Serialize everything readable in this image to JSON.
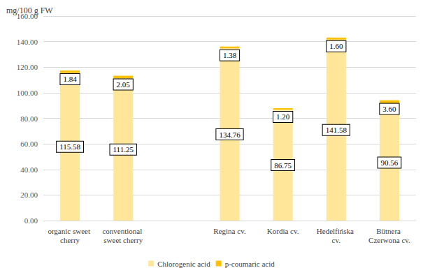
{
  "chart_data": {
    "type": "bar",
    "y_label": "mg/100 g FW",
    "categories": [
      "organic sweet cherry",
      "conventional sweet cherry",
      null,
      "Regina cv.",
      "Kordia cv.",
      "Hedelfińska cv.",
      "Bütnera Czerwona cv."
    ],
    "series": [
      {
        "name": "Chlorogenic acid",
        "color": "#FFE699",
        "values": [
          115.58,
          111.25,
          null,
          134.76,
          86.75,
          141.58,
          90.56
        ],
        "value_labels": [
          "115.58",
          "111.25",
          null,
          "134.76",
          "86.75",
          "141.58",
          "90.56"
        ]
      },
      {
        "name": "p-coumaric acid",
        "color": "#FFC000",
        "values": [
          1.84,
          2.05,
          null,
          1.38,
          1.2,
          1.6,
          3.6
        ],
        "value_labels": [
          "1.84",
          "2.05",
          null,
          "1.38",
          "1.20",
          "1.60",
          "3.60"
        ]
      }
    ],
    "ylim": [
      0,
      160
    ],
    "yticks": [
      {
        "value": 0,
        "label": "0.00"
      },
      {
        "value": 20,
        "label": "20.00"
      },
      {
        "value": 40,
        "label": "40.00"
      },
      {
        "value": 60,
        "label": "60.00"
      },
      {
        "value": 80,
        "label": "80.00"
      },
      {
        "value": 100,
        "label": "100.00"
      },
      {
        "value": 120,
        "label": "120.00"
      },
      {
        "value": 140,
        "label": "140.00"
      },
      {
        "value": 160,
        "label": "160.00"
      }
    ],
    "grid": true,
    "stacked": true,
    "data_labels": true,
    "legend": "bottom"
  }
}
